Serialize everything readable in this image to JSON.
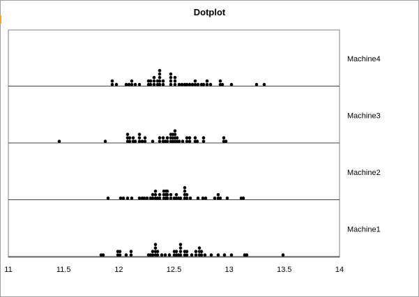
{
  "chart_data": {
    "type": "scatter",
    "subtype": "dotplot",
    "title": "Dotplot",
    "xlabel": "",
    "ylabel": "",
    "xlim": [
      11,
      14
    ],
    "xticks": [
      11,
      11.5,
      12,
      12.5,
      13,
      13.5,
      14
    ],
    "tick_labels": [
      "11",
      "11.5",
      "12",
      "12.5",
      "13",
      "13.5",
      "14"
    ],
    "grid": false,
    "legend": "none",
    "dot_color": "#000000",
    "series": [
      {
        "name": "Machine4",
        "values": [
          11.94,
          11.94,
          11.98,
          12.07,
          12.09,
          12.12,
          12.12,
          12.15,
          12.19,
          12.27,
          12.27,
          12.29,
          12.29,
          12.32,
          12.32,
          12.32,
          12.35,
          12.35,
          12.37,
          12.37,
          12.37,
          12.37,
          12.37,
          12.4,
          12.4,
          12.47,
          12.47,
          12.47,
          12.47,
          12.51,
          12.51,
          12.51,
          12.55,
          12.57,
          12.6,
          12.62,
          12.64,
          12.67,
          12.69,
          12.69,
          12.72,
          12.75,
          12.77,
          12.8,
          12.8,
          12.83,
          12.92,
          12.92,
          12.94,
          13.02,
          13.25,
          13.32
        ]
      },
      {
        "name": "Machine3",
        "values": [
          11.46,
          11.88,
          12.08,
          12.08,
          12.08,
          12.1,
          12.1,
          12.13,
          12.13,
          12.15,
          12.19,
          12.19,
          12.19,
          12.21,
          12.24,
          12.24,
          12.31,
          12.37,
          12.37,
          12.4,
          12.4,
          12.42,
          12.44,
          12.44,
          12.47,
          12.47,
          12.47,
          12.49,
          12.49,
          12.49,
          12.51,
          12.51,
          12.51,
          12.51,
          12.53,
          12.53,
          12.55,
          12.58,
          12.62,
          12.62,
          12.64,
          12.64,
          12.69,
          12.69,
          12.71,
          12.77,
          12.77,
          12.95,
          12.95,
          12.97
        ]
      },
      {
        "name": "Machine2",
        "values": [
          11.9,
          12.02,
          12.04,
          12.08,
          12.12,
          12.19,
          12.21,
          12.23,
          12.26,
          12.29,
          12.31,
          12.31,
          12.33,
          12.33,
          12.33,
          12.35,
          12.37,
          12.37,
          12.41,
          12.41,
          12.41,
          12.43,
          12.43,
          12.43,
          12.44,
          12.44,
          12.44,
          12.47,
          12.47,
          12.5,
          12.52,
          12.52,
          12.54,
          12.56,
          12.6,
          12.6,
          12.6,
          12.6,
          12.62,
          12.62,
          12.65,
          12.72,
          12.76,
          12.79,
          12.87,
          12.9,
          12.9,
          12.92,
          12.98,
          13.11,
          13.13
        ]
      },
      {
        "name": "Machine1",
        "values": [
          11.84,
          11.86,
          11.99,
          11.99,
          12.01,
          12.01,
          12.07,
          12.11,
          12.11,
          12.27,
          12.29,
          12.31,
          12.31,
          12.33,
          12.33,
          12.33,
          12.33,
          12.35,
          12.35,
          12.39,
          12.42,
          12.46,
          12.5,
          12.5,
          12.52,
          12.52,
          12.54,
          12.56,
          12.56,
          12.56,
          12.56,
          12.6,
          12.6,
          12.62,
          12.62,
          12.66,
          12.7,
          12.7,
          12.73,
          12.73,
          12.73,
          12.75,
          12.75,
          12.78,
          12.84,
          12.9,
          12.96,
          13.02,
          13.14,
          13.16,
          13.49
        ]
      }
    ]
  }
}
